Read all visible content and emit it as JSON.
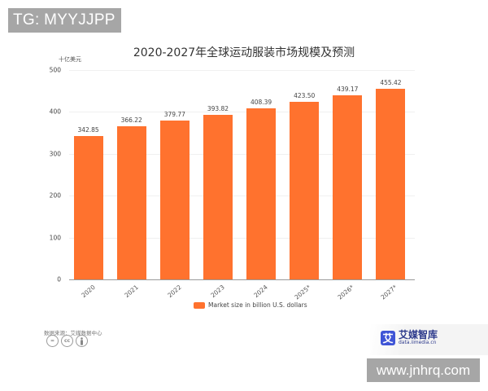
{
  "watermarks": {
    "top": "TG: MYYJJPP",
    "bottom": "www.jnhrq.com"
  },
  "chart": {
    "title": "2020-2027年全球运动服装市场规模及预测",
    "y_unit": "十亿美元",
    "legend": "Market size in billion U.S. dollars",
    "source": "数据来源：艾媒数据中心",
    "license_icons": [
      "=",
      "cc",
      "person"
    ],
    "logo": {
      "mark": "艾",
      "name": "艾媒智库",
      "url": "data.iimedia.cn"
    },
    "bar_color": "#ff722e"
  },
  "chart_data": {
    "type": "bar",
    "title": "2020-2027年全球运动服装市场规模及预测",
    "xlabel": "",
    "ylabel": "十亿美元",
    "categories": [
      "2020",
      "2021",
      "2022",
      "2023",
      "2024",
      "2025*",
      "2026*",
      "2027*"
    ],
    "series": [
      {
        "name": "Market size in billion U.S. dollars",
        "values": [
          342.85,
          366.22,
          379.77,
          393.82,
          408.39,
          423.5,
          439.17,
          455.42
        ]
      }
    ],
    "value_labels": [
      "342.85",
      "366.22",
      "379.77",
      "393.82",
      "408.39",
      "423.50",
      "439.17",
      "455.42"
    ],
    "yticks": [
      0,
      100,
      200,
      300,
      400,
      500
    ],
    "ylim": [
      0,
      500
    ],
    "grid": true,
    "legend_position": "bottom"
  }
}
